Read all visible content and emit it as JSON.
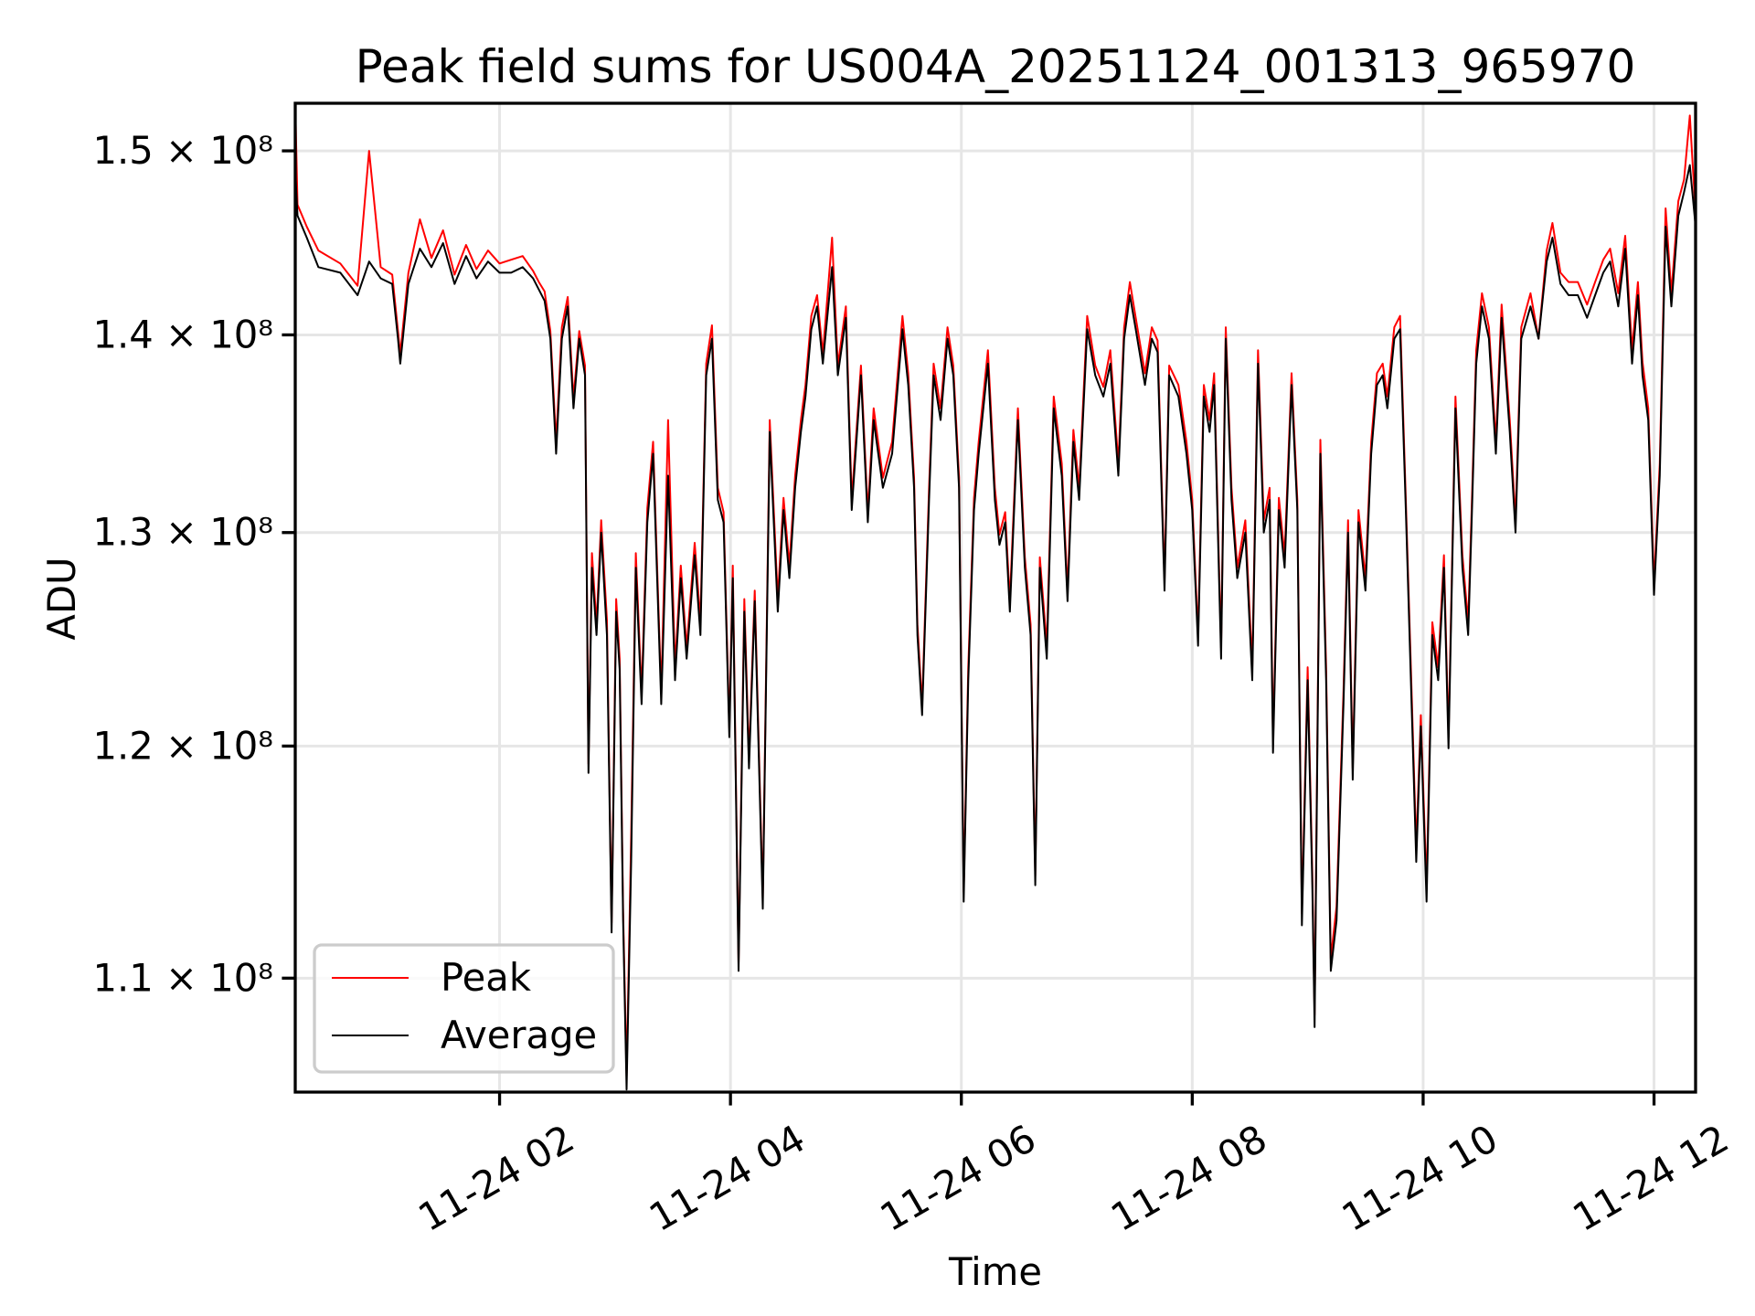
{
  "chart_data": {
    "type": "line",
    "title": "Peak field sums for US004A_20251124_001313_965970",
    "xlabel": "Time",
    "ylabel": "ADU",
    "yscale": "log",
    "y_unit": 100000000,
    "xlim_hours": [
      0.23,
      12.36
    ],
    "ylim": [
      1.054,
      1.527
    ],
    "grid": true,
    "legend_position": "lower-left",
    "x_ticks": [
      {
        "value": 2,
        "label": "11-24 02"
      },
      {
        "value": 4,
        "label": "11-24 04"
      },
      {
        "value": 6,
        "label": "11-24 06"
      },
      {
        "value": 8,
        "label": "11-24 08"
      },
      {
        "value": 10,
        "label": "11-24 10"
      },
      {
        "value": 12,
        "label": "11-24 12"
      }
    ],
    "y_ticks": [
      {
        "value": 1.5,
        "label": "1.5 × 10⁸"
      },
      {
        "value": 1.4,
        "label": "1.4 × 10⁸"
      },
      {
        "value": 1.3,
        "label": "1.3 × 10⁸"
      },
      {
        "value": 1.2,
        "label": "1.2 × 10⁸"
      },
      {
        "value": 1.1,
        "label": "1.1 × 10⁸"
      }
    ],
    "x_hours": [
      0.23,
      0.25,
      0.33,
      0.43,
      0.62,
      0.77,
      0.87,
      0.97,
      1.07,
      1.12,
      1.14,
      1.21,
      1.31,
      1.41,
      1.51,
      1.61,
      1.71,
      1.8,
      1.9,
      2.0,
      2.1,
      2.2,
      2.29,
      2.34,
      2.39,
      2.44,
      2.49,
      2.54,
      2.59,
      2.64,
      2.69,
      2.74,
      2.77,
      2.8,
      2.84,
      2.88,
      2.93,
      2.97,
      3.01,
      3.04,
      3.07,
      3.1,
      3.14,
      3.18,
      3.23,
      3.28,
      3.33,
      3.4,
      3.46,
      3.52,
      3.57,
      3.62,
      3.69,
      3.74,
      3.79,
      3.84,
      3.89,
      3.94,
      3.99,
      4.02,
      4.07,
      4.12,
      4.16,
      4.21,
      4.28,
      4.34,
      4.41,
      4.46,
      4.51,
      4.56,
      4.61,
      4.65,
      4.7,
      4.75,
      4.8,
      4.88,
      4.93,
      5.0,
      5.05,
      5.13,
      5.19,
      5.24,
      5.32,
      5.4,
      5.49,
      5.54,
      5.59,
      5.62,
      5.66,
      5.72,
      5.76,
      5.82,
      5.88,
      5.93,
      5.98,
      6.02,
      6.06,
      6.11,
      6.15,
      6.23,
      6.29,
      6.33,
      6.38,
      6.42,
      6.49,
      6.55,
      6.6,
      6.64,
      6.68,
      6.74,
      6.8,
      6.87,
      6.92,
      6.97,
      7.02,
      7.09,
      7.16,
      7.23,
      7.29,
      7.36,
      7.41,
      7.46,
      7.51,
      7.59,
      7.65,
      7.7,
      7.76,
      7.8,
      7.88,
      7.95,
      8.0,
      8.05,
      8.1,
      8.15,
      8.19,
      8.25,
      8.29,
      8.34,
      8.39,
      8.46,
      8.52,
      8.57,
      8.62,
      8.67,
      8.7,
      8.75,
      8.8,
      8.86,
      8.91,
      8.95,
      9.0,
      9.04,
      9.06,
      9.11,
      9.16,
      9.2,
      9.25,
      9.31,
      9.35,
      9.39,
      9.44,
      9.5,
      9.55,
      9.6,
      9.65,
      9.69,
      9.75,
      9.8,
      9.85,
      9.9,
      9.94,
      9.98,
      10.03,
      10.08,
      10.13,
      10.18,
      10.22,
      10.28,
      10.34,
      10.39,
      10.42,
      10.46,
      10.51,
      10.57,
      10.63,
      10.68,
      10.75,
      10.8,
      10.85,
      10.93,
      11.0,
      11.07,
      11.12,
      11.19,
      11.26,
      11.34,
      11.42,
      11.49,
      11.56,
      11.62,
      11.69,
      11.75,
      11.81,
      11.86,
      11.9,
      11.95,
      12.0,
      12.05,
      12.1,
      12.15,
      12.21,
      12.26,
      12.31,
      12.36
    ],
    "series": [
      {
        "name": "Peak",
        "color": "#ff0000",
        "values": [
          1.527,
          1.47,
          1.458,
          1.445,
          1.438,
          1.426,
          1.5,
          1.436,
          1.432,
          1.402,
          1.39,
          1.433,
          1.462,
          1.441,
          1.456,
          1.432,
          1.448,
          1.435,
          1.445,
          1.438,
          1.44,
          1.442,
          1.434,
          1.428,
          1.423,
          1.402,
          1.345,
          1.404,
          1.42,
          1.367,
          1.402,
          1.384,
          1.192,
          1.29,
          1.256,
          1.306,
          1.258,
          1.123,
          1.268,
          1.24,
          1.128,
          1.06,
          1.16,
          1.29,
          1.224,
          1.312,
          1.345,
          1.224,
          1.356,
          1.236,
          1.284,
          1.245,
          1.295,
          1.257,
          1.385,
          1.405,
          1.322,
          1.31,
          1.208,
          1.284,
          1.106,
          1.268,
          1.194,
          1.272,
          1.133,
          1.356,
          1.268,
          1.317,
          1.284,
          1.328,
          1.356,
          1.374,
          1.41,
          1.421,
          1.39,
          1.452,
          1.384,
          1.415,
          1.316,
          1.384,
          1.31,
          1.362,
          1.327,
          1.345,
          1.41,
          1.38,
          1.327,
          1.256,
          1.218,
          1.322,
          1.385,
          1.362,
          1.404,
          1.384,
          1.327,
          1.136,
          1.236,
          1.317,
          1.345,
          1.392,
          1.322,
          1.299,
          1.31,
          1.267,
          1.362,
          1.288,
          1.256,
          1.143,
          1.288,
          1.246,
          1.368,
          1.334,
          1.272,
          1.351,
          1.322,
          1.41,
          1.384,
          1.373,
          1.392,
          1.334,
          1.404,
          1.428,
          1.409,
          1.38,
          1.404,
          1.397,
          1.277,
          1.384,
          1.374,
          1.345,
          1.316,
          1.251,
          1.374,
          1.356,
          1.38,
          1.245,
          1.404,
          1.322,
          1.283,
          1.306,
          1.236,
          1.392,
          1.306,
          1.322,
          1.202,
          1.317,
          1.289,
          1.38,
          1.316,
          1.127,
          1.236,
          1.144,
          1.085,
          1.346,
          1.236,
          1.108,
          1.13,
          1.225,
          1.306,
          1.19,
          1.311,
          1.278,
          1.345,
          1.38,
          1.385,
          1.368,
          1.404,
          1.41,
          1.316,
          1.225,
          1.155,
          1.214,
          1.138,
          1.257,
          1.236,
          1.289,
          1.204,
          1.368,
          1.289,
          1.257,
          1.311,
          1.392,
          1.422,
          1.404,
          1.345,
          1.416,
          1.356,
          1.306,
          1.404,
          1.422,
          1.398,
          1.445,
          1.46,
          1.433,
          1.428,
          1.428,
          1.416,
          1.428,
          1.44,
          1.446,
          1.422,
          1.453,
          1.392,
          1.428,
          1.386,
          1.362,
          1.275,
          1.334,
          1.468,
          1.422,
          1.472,
          1.484,
          1.52,
          1.465
        ]
      },
      {
        "name": "Average",
        "color": "#000000",
        "values": [
          1.489,
          1.464,
          1.452,
          1.436,
          1.433,
          1.421,
          1.439,
          1.43,
          1.427,
          1.398,
          1.385,
          1.427,
          1.446,
          1.436,
          1.449,
          1.427,
          1.442,
          1.43,
          1.439,
          1.433,
          1.433,
          1.436,
          1.43,
          1.424,
          1.418,
          1.398,
          1.339,
          1.398,
          1.415,
          1.362,
          1.398,
          1.379,
          1.188,
          1.283,
          1.251,
          1.3,
          1.251,
          1.119,
          1.262,
          1.235,
          1.124,
          1.055,
          1.149,
          1.283,
          1.219,
          1.305,
          1.339,
          1.219,
          1.328,
          1.23,
          1.278,
          1.24,
          1.289,
          1.251,
          1.379,
          1.398,
          1.316,
          1.305,
          1.204,
          1.278,
          1.103,
          1.262,
          1.19,
          1.267,
          1.129,
          1.35,
          1.262,
          1.311,
          1.278,
          1.322,
          1.35,
          1.368,
          1.403,
          1.415,
          1.385,
          1.436,
          1.379,
          1.409,
          1.311,
          1.379,
          1.305,
          1.356,
          1.322,
          1.339,
          1.403,
          1.374,
          1.322,
          1.251,
          1.214,
          1.316,
          1.379,
          1.356,
          1.398,
          1.379,
          1.322,
          1.132,
          1.23,
          1.311,
          1.339,
          1.385,
          1.316,
          1.294,
          1.305,
          1.262,
          1.356,
          1.283,
          1.251,
          1.139,
          1.283,
          1.24,
          1.362,
          1.328,
          1.267,
          1.345,
          1.316,
          1.403,
          1.379,
          1.368,
          1.385,
          1.328,
          1.398,
          1.421,
          1.403,
          1.374,
          1.398,
          1.391,
          1.272,
          1.379,
          1.368,
          1.339,
          1.311,
          1.246,
          1.368,
          1.35,
          1.374,
          1.24,
          1.398,
          1.316,
          1.278,
          1.3,
          1.23,
          1.385,
          1.3,
          1.316,
          1.197,
          1.311,
          1.283,
          1.374,
          1.311,
          1.122,
          1.23,
          1.139,
          1.08,
          1.339,
          1.23,
          1.103,
          1.124,
          1.219,
          1.3,
          1.185,
          1.305,
          1.272,
          1.339,
          1.374,
          1.379,
          1.362,
          1.398,
          1.403,
          1.311,
          1.219,
          1.149,
          1.209,
          1.132,
          1.251,
          1.23,
          1.283,
          1.199,
          1.362,
          1.283,
          1.251,
          1.305,
          1.385,
          1.415,
          1.398,
          1.339,
          1.409,
          1.35,
          1.3,
          1.398,
          1.415,
          1.398,
          1.439,
          1.452,
          1.427,
          1.421,
          1.421,
          1.409,
          1.421,
          1.433,
          1.439,
          1.415,
          1.446,
          1.385,
          1.421,
          1.379,
          1.356,
          1.27,
          1.328,
          1.458,
          1.415,
          1.464,
          1.477,
          1.492,
          1.458
        ]
      }
    ]
  }
}
